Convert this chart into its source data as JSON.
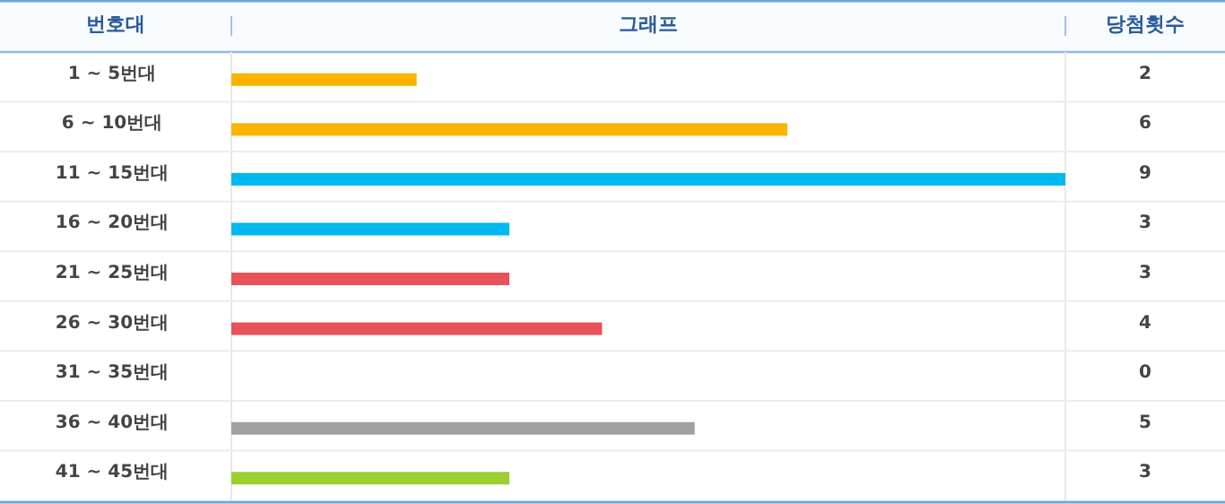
{
  "chart_data": {
    "type": "bar",
    "orientation": "horizontal",
    "title": "그래프",
    "ylabel": "번호대",
    "xlabel": "당첨횟수",
    "categories": [
      "1 ~ 5번대",
      "6 ~ 10번대",
      "11 ~ 15번대",
      "16 ~ 20번대",
      "21 ~ 25번대",
      "26 ~ 30번대",
      "31 ~ 35번대",
      "36 ~ 40번대",
      "41 ~ 45번대"
    ],
    "values": [
      2,
      6,
      9,
      3,
      3,
      4,
      0,
      5,
      3
    ],
    "colors": [
      "#f9b500",
      "#f9b500",
      "#00b8f0",
      "#00b8f0",
      "#e8525a",
      "#e8525a",
      "#e8525a",
      "#a0a0a0",
      "#9ccf30"
    ],
    "data_labels": true,
    "grid": "y"
  }
}
